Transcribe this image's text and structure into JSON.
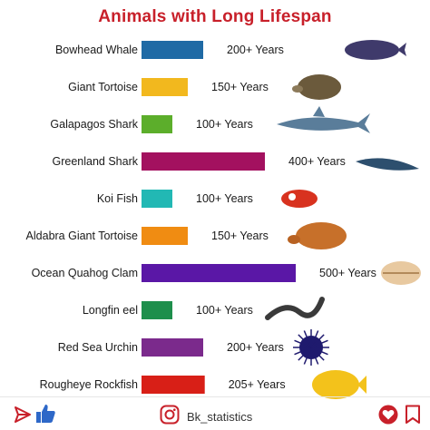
{
  "title": "Animals with Long Lifespan",
  "footer": {
    "handle": "Bk_statistics"
  },
  "icons": {
    "share": "share-icon",
    "like": "thumbs-up-icon",
    "instagram": "instagram-icon",
    "heart": "heart-icon",
    "save": "bookmark-icon"
  },
  "chart_data": {
    "type": "bar",
    "orientation": "horizontal",
    "title": "Animals with Long Lifespan",
    "xlabel": "",
    "ylabel": "",
    "grid": false,
    "categories": [
      "Bowhead Whale",
      "Giant Tortoise",
      "Galapagos Shark",
      "Greenland Shark",
      "Koi Fish",
      "Aldabra Giant Tortoise",
      "Ocean Quahog Clam",
      "Longfin eel",
      "Red Sea Urchin",
      "Rougheye Rockfish"
    ],
    "values": [
      200,
      150,
      100,
      400,
      100,
      150,
      500,
      100,
      200,
      205
    ],
    "data_labels": [
      "200+ Years",
      "150+ Years",
      "100+ Years",
      "400+ Years",
      "100+ Years",
      "150+ Years",
      "500+ Years",
      "100+ Years",
      "200+ Years",
      "205+ Years"
    ],
    "colors": [
      "#1f6aa5",
      "#f2b81e",
      "#5cae2b",
      "#a3115f",
      "#22b8b4",
      "#f08c12",
      "#5a17a6",
      "#1e8f4c",
      "#7b2a8c",
      "#d81f17"
    ]
  }
}
